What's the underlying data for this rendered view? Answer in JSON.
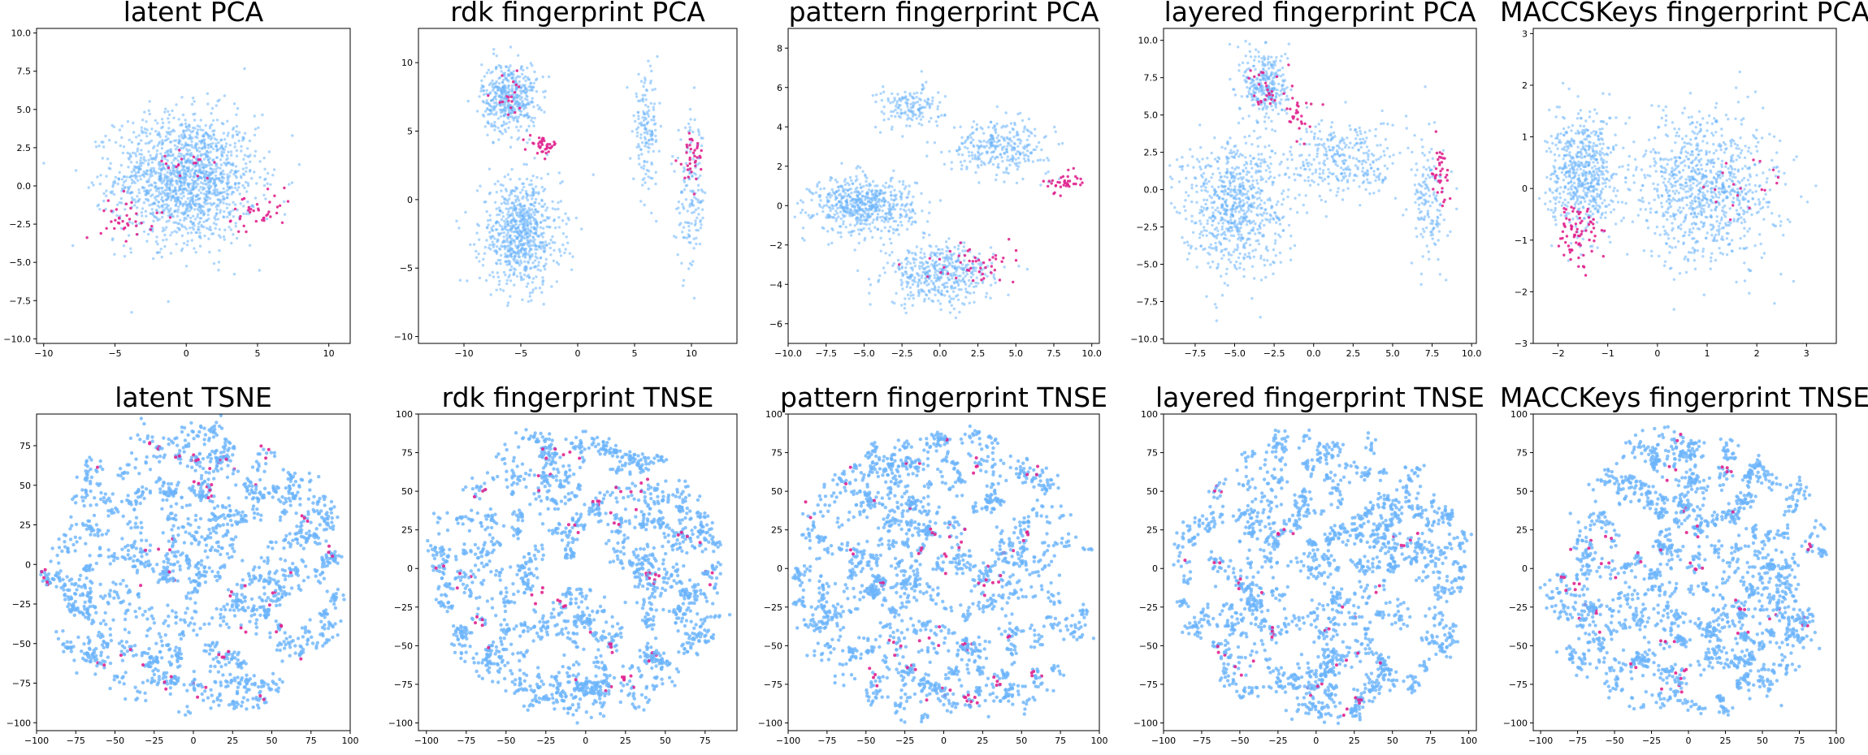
{
  "colors": {
    "points": "#6cb4fb",
    "highlight": "#e0238f"
  },
  "chart_data": [
    {
      "type": "scatter",
      "title": "latent PCA",
      "xlim": [
        -10.5,
        11.5
      ],
      "ylim": [
        -10.3,
        10.3
      ],
      "xticks": [
        -10,
        -5,
        0,
        5,
        10
      ],
      "xticklabels": [
        "−10",
        "−5",
        "0",
        "5",
        "10"
      ],
      "yticks": [
        -10,
        -7.5,
        -5,
        -2.5,
        0,
        2.5,
        5,
        7.5,
        10
      ],
      "yticklabels": [
        "−10.0",
        "−7.5",
        "−5.0",
        "−2.5",
        "0.0",
        "2.5",
        "5.0",
        "7.5",
        "10.0"
      ],
      "blobs": [
        [
          0,
          0.5,
          4.5,
          3.8,
          1.0
        ]
      ],
      "highlight_regions": [
        [
          -4,
          -2,
          2,
          1.5,
          0.4
        ],
        [
          5,
          -2,
          2.5,
          1.5,
          0.4
        ],
        [
          0,
          1.5,
          2,
          1.2,
          0.2
        ]
      ]
    },
    {
      "type": "scatter",
      "title": "rdk fingerprint PCA",
      "xlim": [
        -14,
        14
      ],
      "ylim": [
        -10.5,
        12.5
      ],
      "xticks": [
        -10,
        -5,
        0,
        5,
        10
      ],
      "xticklabels": [
        "−10",
        "−5",
        "0",
        "5",
        "10"
      ],
      "yticks": [
        -10,
        -5,
        0,
        5,
        10
      ],
      "yticklabels": [
        "−10",
        "−5",
        "0",
        "5",
        "10"
      ],
      "blobs": [
        [
          -6,
          7.5,
          2.2,
          2.3,
          0.3
        ],
        [
          -5,
          -2.5,
          3.2,
          3.6,
          0.5
        ],
        [
          6,
          5,
          1.0,
          3.5,
          0.1
        ],
        [
          10,
          0,
          1.2,
          5.0,
          0.1
        ]
      ],
      "highlight_regions": [
        [
          -3,
          4,
          1.2,
          0.6,
          0.4
        ],
        [
          -6,
          7.5,
          1.5,
          1.5,
          0.2
        ],
        [
          10,
          3,
          1.2,
          2.0,
          0.4
        ]
      ]
    },
    {
      "type": "scatter",
      "title": "pattern fingerprint PCA",
      "xlim": [
        -10,
        10.5
      ],
      "ylim": [
        -7,
        9
      ],
      "xticks": [
        -10,
        -7.5,
        -5,
        -2.5,
        0,
        2.5,
        5,
        7.5,
        10
      ],
      "xticklabels": [
        "−10.0",
        "−7.5",
        "−5.0",
        "−2.5",
        "0.0",
        "2.5",
        "5.0",
        "7.5",
        "10.0"
      ],
      "yticks": [
        -6,
        -4,
        -2,
        0,
        2,
        4,
        6,
        8
      ],
      "yticklabels": [
        "−6",
        "−4",
        "−2",
        "0",
        "2",
        "4",
        "6",
        "8"
      ],
      "blobs": [
        [
          -5,
          0,
          3.0,
          1.3,
          0.4
        ],
        [
          0,
          -3.5,
          3.2,
          1.4,
          0.3
        ],
        [
          4,
          3,
          3.0,
          1.2,
          0.2
        ],
        [
          -2,
          5,
          2.0,
          1.0,
          0.1
        ]
      ],
      "highlight_regions": [
        [
          8,
          1.2,
          1.2,
          0.5,
          0.4
        ],
        [
          2,
          -3,
          3.0,
          1.0,
          0.5
        ]
      ]
    },
    {
      "type": "scatter",
      "title": "layered fingerprint PCA",
      "xlim": [
        -9.5,
        10.3
      ],
      "ylim": [
        -10.3,
        10.8
      ],
      "xticks": [
        -7.5,
        -5,
        -2.5,
        0,
        2.5,
        5,
        7.5,
        10
      ],
      "xticklabels": [
        "−7.5",
        "−5.0",
        "−2.5",
        "0.0",
        "2.5",
        "5.0",
        "7.5",
        "10.0"
      ],
      "yticks": [
        -10,
        -7.5,
        -5,
        -2.5,
        0,
        2.5,
        5,
        7.5,
        10
      ],
      "yticklabels": [
        "−10.0",
        "−7.5",
        "−5.0",
        "−2.5",
        "0.0",
        "2.5",
        "5.0",
        "7.5",
        "10.0"
      ],
      "blobs": [
        [
          -3,
          7,
          1.3,
          2.3,
          0.2
        ],
        [
          -5,
          -1,
          3.0,
          4.0,
          0.5
        ],
        [
          2,
          2,
          3.0,
          2.5,
          0.2
        ],
        [
          7.3,
          -1,
          1.0,
          3.8,
          0.1
        ]
      ],
      "highlight_regions": [
        [
          8,
          1,
          0.6,
          2.0,
          0.4
        ],
        [
          -1,
          5,
          1.0,
          2.0,
          0.3
        ],
        [
          -3,
          7,
          1.0,
          1.5,
          0.3
        ]
      ]
    },
    {
      "type": "scatter",
      "title": "MACCSKeys fingerprint PCA",
      "xlim": [
        -2.5,
        3.6
      ],
      "ylim": [
        -3,
        3.1
      ],
      "xticks": [
        -2,
        -1,
        0,
        1,
        2,
        3
      ],
      "xticklabels": [
        "−2",
        "−1",
        "0",
        "1",
        "2",
        "3"
      ],
      "yticks": [
        -3,
        -2,
        -1,
        0,
        1,
        2,
        3
      ],
      "yticklabels": [
        "−3",
        "−2",
        "−1",
        "0",
        "1",
        "2",
        "3"
      ],
      "blobs": [
        [
          -1.5,
          0.3,
          0.6,
          1.0,
          0.4
        ],
        [
          1,
          0,
          1.3,
          1.3,
          0.6
        ]
      ],
      "highlight_regions": [
        [
          -1.6,
          -0.8,
          0.4,
          0.6,
          0.8
        ],
        [
          1.5,
          0,
          1.0,
          0.8,
          0.2
        ]
      ]
    },
    {
      "type": "scatter",
      "title": "latent TSNE",
      "xlim": [
        -100,
        100
      ],
      "ylim": [
        -105,
        95
      ],
      "xticks": [
        -100,
        -75,
        -50,
        -25,
        0,
        25,
        50,
        75,
        100
      ],
      "xticklabels": [
        "−100",
        "−75",
        "−50",
        "−25",
        "0",
        "25",
        "50",
        "75",
        "100"
      ],
      "yticks": [
        -100,
        -75,
        -50,
        -25,
        0,
        25,
        50,
        75
      ],
      "yticklabels": [
        "−100",
        "−75",
        "−50",
        "−25",
        "0",
        "25",
        "50",
        "75"
      ],
      "disc": [
        0,
        -5,
        95,
        90
      ]
    },
    {
      "type": "scatter",
      "title": "rdk fingerprint TNSE",
      "xlim": [
        -105,
        95
      ],
      "ylim": [
        -105,
        100
      ],
      "xticks": [
        -100,
        -75,
        -50,
        -25,
        0,
        25,
        50,
        75
      ],
      "xticklabels": [
        "−100",
        "−75",
        "−50",
        "−25",
        "0",
        "25",
        "50",
        "75"
      ],
      "yticks": [
        -100,
        -75,
        -50,
        -25,
        0,
        25,
        50,
        75,
        100
      ],
      "yticklabels": [
        "−100",
        "−75",
        "−50",
        "−25",
        "0",
        "25",
        "50",
        "75",
        "100"
      ],
      "disc": [
        -5,
        -2,
        92,
        92
      ]
    },
    {
      "type": "scatter",
      "title": "pattern fingerprint TNSE",
      "xlim": [
        -100,
        100
      ],
      "ylim": [
        -105,
        100
      ],
      "xticks": [
        -100,
        -75,
        -50,
        -25,
        0,
        25,
        50,
        75,
        100
      ],
      "xticklabels": [
        "−100",
        "−75",
        "−50",
        "−25",
        "0",
        "25",
        "50",
        "75",
        "100"
      ],
      "yticks": [
        -100,
        -75,
        -50,
        -25,
        0,
        25,
        50,
        75,
        100
      ],
      "yticklabels": [
        "−100",
        "−75",
        "−50",
        "−25",
        "0",
        "25",
        "50",
        "75",
        "100"
      ],
      "disc": [
        0,
        -5,
        95,
        95
      ]
    },
    {
      "type": "scatter",
      "title": "layered fingerprint TNSE",
      "xlim": [
        -100,
        105
      ],
      "ylim": [
        -105,
        100
      ],
      "xticks": [
        -100,
        -75,
        -50,
        -25,
        0,
        25,
        50,
        75,
        100
      ],
      "xticklabels": [
        "−100",
        "−75",
        "−50",
        "−25",
        "0",
        "25",
        "50",
        "75",
        "100"
      ],
      "yticks": [
        -100,
        -75,
        -50,
        -25,
        0,
        25,
        50,
        75,
        100
      ],
      "yticklabels": [
        "−100",
        "−75",
        "−50",
        "−25",
        "0",
        "25",
        "50",
        "75",
        "100"
      ],
      "disc": [
        5,
        -5,
        95,
        92
      ]
    },
    {
      "type": "scatter",
      "title": "MACCKeys fingerprint TNSE",
      "xlim": [
        -105,
        100
      ],
      "ylim": [
        -105,
        100
      ],
      "xticks": [
        -100,
        -75,
        -50,
        -25,
        0,
        25,
        50,
        75,
        100
      ],
      "xticklabels": [
        "−100",
        "−75",
        "−50",
        "−25",
        "0",
        "25",
        "50",
        "75",
        "100"
      ],
      "yticks": [
        -100,
        -75,
        -50,
        -25,
        0,
        25,
        50,
        75,
        100
      ],
      "yticklabels": [
        "−100",
        "−75",
        "−50",
        "−25",
        "0",
        "25",
        "50",
        "75",
        "100"
      ],
      "disc": [
        0,
        -5,
        95,
        92
      ]
    }
  ]
}
